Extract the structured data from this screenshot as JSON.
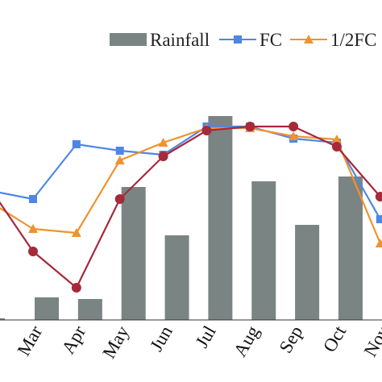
{
  "chart_data": {
    "type": "bar+line",
    "categories": [
      "Mar",
      "Apr",
      "May",
      "Jun",
      "Jul",
      "Aug",
      "Sep",
      "Oct",
      "Nov"
    ],
    "bars": {
      "name": "Rainfall",
      "color": "#7a8483",
      "values": [
        28,
        26,
        165,
        105,
        253,
        172,
        118,
        178
      ]
    },
    "series": [
      {
        "name": "FC",
        "color": "#4e86e4",
        "marker": "square",
        "values": [
          150,
          218,
          210,
          205,
          240,
          240,
          225,
          220,
          125
        ]
      },
      {
        "name": "1/2FC",
        "color": "#f0922f",
        "marker": "triangle",
        "values": [
          113,
          108,
          198,
          220,
          238,
          238,
          228,
          224,
          95
        ]
      },
      {
        "name": "",
        "color": "#a52a3b",
        "marker": "circle",
        "values": [
          85,
          40,
          150,
          203,
          235,
          240,
          240,
          215,
          153
        ]
      }
    ],
    "left_edge": {
      "bar_value": 2,
      "FC": 160,
      "half_FC": 145,
      "dark_series": 160
    },
    "ylim": [
      0,
      300
    ],
    "grid": false,
    "legend_position": "top-right",
    "title": "",
    "xlabel": "",
    "ylabel": ""
  }
}
